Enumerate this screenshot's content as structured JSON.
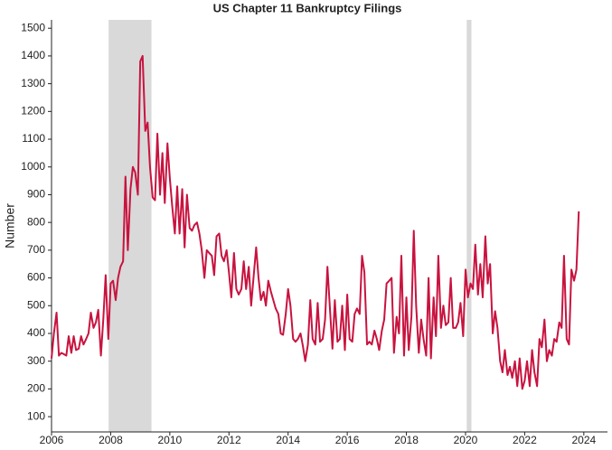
{
  "chart_data": {
    "type": "line",
    "title": "US Chapter 11 Bankruptcy Filings",
    "y_label": "Number",
    "x": [
      2006,
      2006.08,
      2006.17,
      2006.25,
      2006.33,
      2006.42,
      2006.5,
      2006.58,
      2006.67,
      2006.75,
      2006.83,
      2006.92,
      2007,
      2007.08,
      2007.17,
      2007.25,
      2007.33,
      2007.42,
      2007.5,
      2007.58,
      2007.67,
      2007.75,
      2007.83,
      2007.92,
      2008,
      2008.08,
      2008.17,
      2008.25,
      2008.33,
      2008.42,
      2008.5,
      2008.58,
      2008.67,
      2008.75,
      2008.83,
      2008.92,
      2009,
      2009.08,
      2009.17,
      2009.25,
      2009.33,
      2009.42,
      2009.5,
      2009.58,
      2009.67,
      2009.75,
      2009.83,
      2009.92,
      2010,
      2010.08,
      2010.17,
      2010.25,
      2010.33,
      2010.42,
      2010.5,
      2010.58,
      2010.67,
      2010.75,
      2010.83,
      2010.92,
      2011,
      2011.08,
      2011.17,
      2011.25,
      2011.33,
      2011.42,
      2011.5,
      2011.58,
      2011.67,
      2011.75,
      2011.83,
      2011.92,
      2012,
      2012.08,
      2012.17,
      2012.25,
      2012.33,
      2012.42,
      2012.5,
      2012.58,
      2012.67,
      2012.75,
      2012.83,
      2012.92,
      2013,
      2013.08,
      2013.17,
      2013.25,
      2013.33,
      2013.42,
      2013.5,
      2013.58,
      2013.67,
      2013.75,
      2013.83,
      2013.92,
      2014,
      2014.08,
      2014.17,
      2014.25,
      2014.33,
      2014.42,
      2014.5,
      2014.58,
      2014.67,
      2014.75,
      2014.83,
      2014.92,
      2015,
      2015.08,
      2015.17,
      2015.25,
      2015.33,
      2015.42,
      2015.5,
      2015.58,
      2015.67,
      2015.75,
      2015.83,
      2015.92,
      2016,
      2016.08,
      2016.17,
      2016.25,
      2016.33,
      2016.42,
      2016.5,
      2016.58,
      2016.67,
      2016.75,
      2016.83,
      2016.92,
      2017,
      2017.08,
      2017.17,
      2017.25,
      2017.33,
      2017.42,
      2017.5,
      2017.58,
      2017.67,
      2017.75,
      2017.83,
      2017.92,
      2018,
      2018.08,
      2018.17,
      2018.25,
      2018.33,
      2018.42,
      2018.5,
      2018.58,
      2018.67,
      2018.75,
      2018.83,
      2018.92,
      2019,
      2019.08,
      2019.17,
      2019.25,
      2019.33,
      2019.42,
      2019.5,
      2019.58,
      2019.67,
      2019.75,
      2019.83,
      2019.92,
      2020,
      2020.08,
      2020.17,
      2020.25,
      2020.33,
      2020.42,
      2020.5,
      2020.58,
      2020.67,
      2020.75,
      2020.83,
      2020.92,
      2021,
      2021.08,
      2021.17,
      2021.25,
      2021.33,
      2021.42,
      2021.5,
      2021.58,
      2021.67,
      2021.75,
      2021.83,
      2021.92,
      2022,
      2022.08,
      2022.17,
      2022.25,
      2022.33,
      2022.42,
      2022.5,
      2022.58,
      2022.67,
      2022.75,
      2022.83,
      2022.92,
      2023,
      2023.08,
      2023.17,
      2023.25,
      2023.33,
      2023.42,
      2023.5,
      2023.58,
      2023.67,
      2023.75,
      2023.83
    ],
    "series": [
      {
        "color": "#c8133f",
        "values": [
          310,
          400,
          475,
          320,
          330,
          325,
          320,
          390,
          330,
          390,
          340,
          345,
          390,
          360,
          380,
          400,
          475,
          420,
          440,
          485,
          320,
          450,
          610,
          380,
          580,
          590,
          520,
          600,
          640,
          660,
          965,
          700,
          920,
          1000,
          980,
          900,
          1380,
          1400,
          1130,
          1160,
          1000,
          890,
          880,
          1120,
          900,
          1050,
          870,
          1085,
          960,
          860,
          760,
          930,
          760,
          920,
          710,
          900,
          780,
          770,
          790,
          800,
          760,
          700,
          600,
          700,
          690,
          680,
          610,
          750,
          760,
          680,
          660,
          700,
          620,
          530,
          690,
          560,
          540,
          560,
          660,
          560,
          640,
          500,
          600,
          710,
          600,
          520,
          550,
          500,
          590,
          550,
          520,
          490,
          470,
          400,
          395,
          470,
          560,
          500,
          380,
          370,
          380,
          400,
          355,
          300,
          360,
          520,
          380,
          360,
          510,
          370,
          380,
          450,
          640,
          480,
          345,
          520,
          370,
          380,
          500,
          340,
          540,
          380,
          370,
          470,
          490,
          470,
          680,
          620,
          360,
          370,
          360,
          410,
          380,
          340,
          410,
          450,
          580,
          590,
          600,
          330,
          460,
          400,
          680,
          320,
          530,
          340,
          460,
          770,
          500,
          330,
          450,
          380,
          320,
          600,
          310,
          530,
          390,
          680,
          420,
          500,
          430,
          440,
          600,
          420,
          420,
          440,
          510,
          390,
          630,
          530,
          580,
          560,
          720,
          540,
          650,
          530,
          750,
          580,
          650,
          400,
          480,
          420,
          300,
          260,
          340,
          250,
          280,
          240,
          300,
          210,
          310,
          200,
          230,
          300,
          210,
          340,
          260,
          210,
          380,
          350,
          450,
          300,
          340,
          320,
          380,
          370,
          440,
          420,
          680,
          380,
          360,
          630,
          590,
          630,
          840
        ]
      }
    ],
    "shaded_x_ranges": [
      [
        2007.93,
        2009.38
      ],
      [
        2020.04,
        2020.2
      ]
    ],
    "shade_color": "#d9d9d9",
    "xlim": [
      2006,
      2024.8
    ],
    "xticks": [
      2006,
      2008,
      2010,
      2012,
      2014,
      2016,
      2018,
      2020,
      2022,
      2024
    ],
    "ylim": [
      45,
      1530
    ],
    "yticks": [
      100,
      200,
      300,
      400,
      500,
      600,
      700,
      800,
      900,
      1000,
      1100,
      1200,
      1300,
      1400,
      1500
    ]
  }
}
